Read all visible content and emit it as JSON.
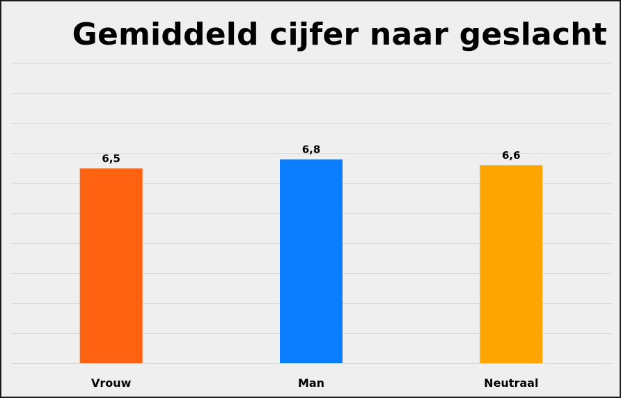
{
  "chart_data": {
    "type": "bar",
    "title": "Gemiddeld cijfer naar geslacht",
    "xlabel": "",
    "ylabel": "",
    "categories": [
      "Vrouw",
      "Man",
      "Neutraal"
    ],
    "values": [
      6.5,
      6.8,
      6.6
    ],
    "data_labels": [
      "6,5",
      "6,8",
      "6,6"
    ],
    "colors": [
      "#ff6312",
      "#0a7efe",
      "#ffa500"
    ],
    "ylim": [
      0,
      10
    ],
    "grid": true,
    "legend": "none",
    "gridline_color": "#d9d9d9",
    "background_color": "#efefef"
  }
}
